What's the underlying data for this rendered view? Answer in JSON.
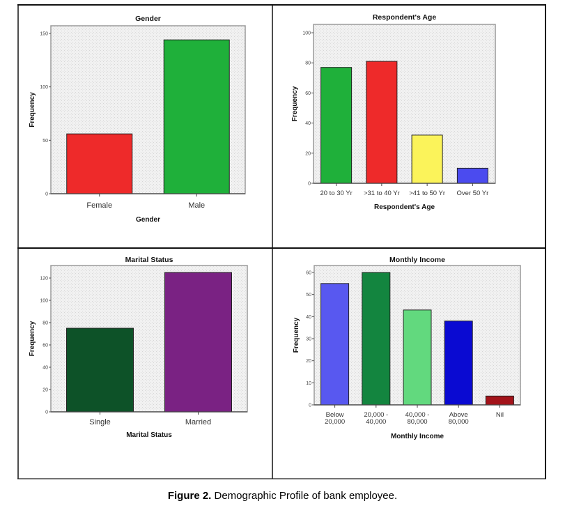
{
  "figure": {
    "caption_label": "Figure 2.",
    "caption_text": " Demographic Profile of bank employee."
  },
  "chart_data": [
    {
      "type": "bar",
      "title": "Gender",
      "xlabel": "Gender",
      "ylabel": "Frequency",
      "categories": [
        "Female",
        "Male"
      ],
      "values": [
        56,
        144
      ],
      "colors": [
        "#ee2a2a",
        "#1fb03a"
      ],
      "ylim": [
        0,
        160
      ],
      "yticks": [
        0,
        50,
        100,
        150
      ],
      "grid": false,
      "legend": "none"
    },
    {
      "type": "bar",
      "title": "Respondent's Age",
      "xlabel": "Respondent's Age",
      "ylabel": "Frequency",
      "categories": [
        "20 to 30 Yr",
        ">31 to 40 Yr",
        ">41 to 50 Yr",
        "Over 50 Yr"
      ],
      "values": [
        77,
        81,
        32,
        10
      ],
      "colors": [
        "#1fb03a",
        "#ee2a2a",
        "#fbf35a",
        "#4b4bef"
      ],
      "ylim": [
        0,
        105
      ],
      "yticks": [
        0,
        20,
        40,
        60,
        80,
        100
      ],
      "grid": false,
      "legend": "none"
    },
    {
      "type": "bar",
      "title": "Marital Status",
      "xlabel": "Marital Status",
      "ylabel": "Frequency",
      "categories": [
        "Single",
        "Married"
      ],
      "values": [
        75,
        125
      ],
      "colors": [
        "#0d5228",
        "#7a2283"
      ],
      "ylim": [
        0,
        131
      ],
      "yticks": [
        0,
        20,
        40,
        60,
        80,
        100,
        120
      ],
      "grid": false,
      "legend": "none"
    },
    {
      "type": "bar",
      "title": "Monthly Income",
      "xlabel": "Monthly Income",
      "ylabel": "Frequency",
      "categories": [
        "Below\n20,000",
        "20,000 -\n40,000",
        "40,000 -\n80,000",
        "Above\n80,000",
        "Nil"
      ],
      "values": [
        55,
        60,
        43,
        38,
        4
      ],
      "colors": [
        "#5858f0",
        "#13853f",
        "#62d97e",
        "#0a0ad2",
        "#a3131a"
      ],
      "ylim": [
        0,
        63
      ],
      "yticks": [
        0,
        10,
        20,
        30,
        40,
        50,
        60
      ],
      "grid": false,
      "legend": "none"
    }
  ]
}
